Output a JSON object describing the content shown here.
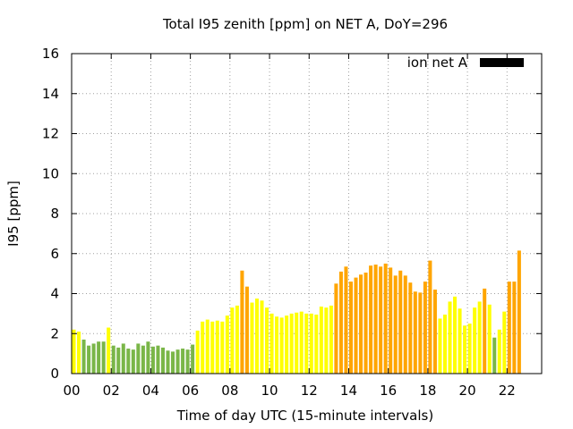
{
  "chart_data": {
    "type": "bar",
    "title": "Total I95 zenith [ppm] on NET A, DoY=296",
    "xlabel": "Time of day UTC (15-minute intervals)",
    "ylabel": "I95 [ppm]",
    "xlim": [
      0,
      23.75
    ],
    "ylim": [
      0,
      16
    ],
    "xticks": [
      0,
      2,
      4,
      6,
      8,
      10,
      12,
      14,
      16,
      18,
      20,
      22
    ],
    "xtick_labels": [
      "00",
      "02",
      "04",
      "06",
      "08",
      "10",
      "12",
      "14",
      "16",
      "18",
      "20",
      "22"
    ],
    "yticks": [
      0,
      2,
      4,
      6,
      8,
      10,
      12,
      14,
      16
    ],
    "ytick_labels": [
      "0",
      "2",
      "4",
      "6",
      "8",
      "10",
      "12",
      "14",
      "16"
    ],
    "grid": true,
    "legend": {
      "label": "ion net A",
      "position": "top-right",
      "color": "#000000"
    },
    "bin_width_hours": 0.25,
    "palette": {
      "green": "#7ab648",
      "yellow": "#ffff00",
      "orange": "#ffa500"
    },
    "values": [
      2.2,
      2.1,
      1.7,
      1.4,
      1.5,
      1.6,
      1.6,
      2.3,
      1.4,
      1.3,
      1.5,
      1.25,
      1.2,
      1.5,
      1.4,
      1.6,
      1.35,
      1.4,
      1.3,
      1.15,
      1.1,
      1.2,
      1.25,
      1.2,
      1.45,
      2.15,
      2.6,
      2.7,
      2.6,
      2.65,
      2.6,
      2.9,
      3.3,
      3.4,
      5.15,
      4.35,
      3.55,
      3.75,
      3.65,
      3.3,
      3.0,
      2.85,
      2.8,
      2.9,
      3.0,
      3.05,
      3.1,
      3.0,
      3.0,
      2.95,
      3.35,
      3.3,
      3.4,
      4.5,
      5.1,
      5.35,
      4.6,
      4.8,
      4.95,
      5.05,
      5.4,
      5.45,
      5.35,
      5.5,
      5.3,
      4.9,
      5.15,
      4.9,
      4.55,
      4.1,
      4.05,
      4.6,
      5.65,
      4.2,
      2.75,
      2.95,
      3.6,
      3.85,
      3.25,
      2.4,
      2.5,
      3.3,
      3.6,
      4.25,
      3.45,
      1.8,
      2.2,
      3.1,
      4.6,
      4.6,
      6.15
    ],
    "colors": [
      "yellow",
      "yellow",
      "green",
      "green",
      "green",
      "green",
      "green",
      "yellow",
      "green",
      "green",
      "green",
      "green",
      "green",
      "green",
      "green",
      "green",
      "green",
      "green",
      "green",
      "green",
      "green",
      "green",
      "green",
      "green",
      "green",
      "yellow",
      "yellow",
      "yellow",
      "yellow",
      "yellow",
      "yellow",
      "yellow",
      "yellow",
      "yellow",
      "orange",
      "orange",
      "yellow",
      "yellow",
      "yellow",
      "yellow",
      "yellow",
      "yellow",
      "yellow",
      "yellow",
      "yellow",
      "yellow",
      "yellow",
      "yellow",
      "yellow",
      "yellow",
      "yellow",
      "yellow",
      "yellow",
      "orange",
      "orange",
      "orange",
      "orange",
      "orange",
      "orange",
      "orange",
      "orange",
      "orange",
      "orange",
      "orange",
      "orange",
      "orange",
      "orange",
      "orange",
      "orange",
      "orange",
      "orange",
      "orange",
      "orange",
      "orange",
      "yellow",
      "yellow",
      "yellow",
      "yellow",
      "yellow",
      "yellow",
      "yellow",
      "yellow",
      "yellow",
      "orange",
      "yellow",
      "green",
      "yellow",
      "yellow",
      "orange",
      "orange",
      "orange"
    ]
  }
}
